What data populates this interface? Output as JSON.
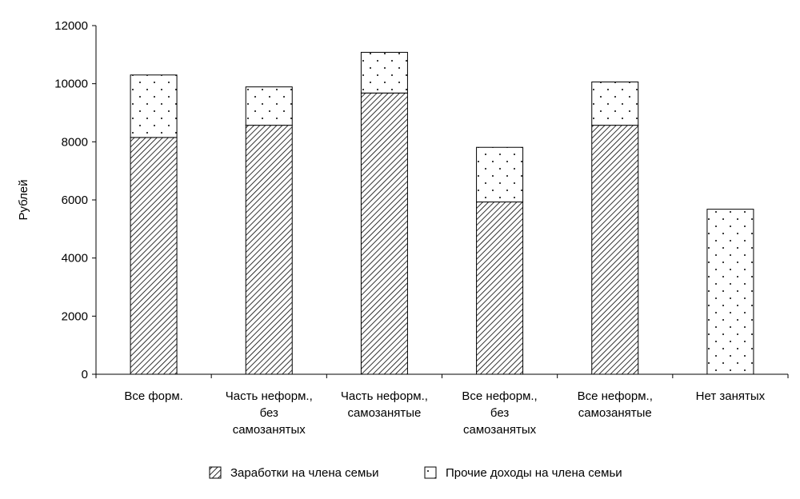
{
  "chart_data": {
    "type": "bar",
    "stacked": true,
    "categories": [
      [
        "Все форм."
      ],
      [
        "Часть неформ.,",
        "без",
        "самозанятых"
      ],
      [
        "Часть неформ.,",
        "самозанятые"
      ],
      [
        "Все неформ.,",
        "без",
        "самозанятых"
      ],
      [
        "Все неформ.,",
        "самозанятые"
      ],
      [
        "Нет занятых"
      ]
    ],
    "series": [
      {
        "name": "Заработки на члена семьи",
        "pattern": "hatch",
        "values": [
          8150,
          8570,
          9680,
          5930,
          8570,
          0
        ]
      },
      {
        "name": "Прочие доходы на члена семьи",
        "pattern": "dots",
        "values": [
          2150,
          1320,
          1400,
          1880,
          1490,
          5680
        ]
      }
    ],
    "ylabel": "Рублей",
    "ylim": [
      0,
      12000
    ],
    "yticks": [
      0,
      2000,
      4000,
      6000,
      8000,
      10000,
      12000
    ],
    "grid": false,
    "legend_position": "bottom"
  }
}
